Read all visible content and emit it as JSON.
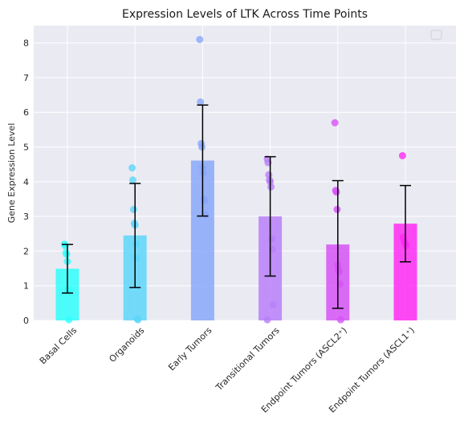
{
  "chart_data": {
    "type": "bar",
    "title": "Expression Levels of LTK Across Time Points",
    "xlabel": "",
    "ylabel": "Gene Expression Level",
    "ylim": [
      0,
      8.5
    ],
    "yticks": [
      0,
      1,
      2,
      3,
      4,
      5,
      6,
      7,
      8
    ],
    "grid": true,
    "legend": "top-right (empty)",
    "background": "#eaeaf2",
    "categories": [
      "Basal Cells",
      "Organoids",
      "Early Tumors",
      "Transitional Tumors",
      "Endpoint Tumors (ASCL2⁺)",
      "Endpoint Tumors (ASCL1⁺)"
    ],
    "values": [
      1.49,
      2.45,
      4.61,
      3.0,
      2.19,
      2.79
    ],
    "errors": [
      0.7,
      1.5,
      1.6,
      1.72,
      1.84,
      1.1
    ],
    "colors": [
      "#2ffffc",
      "#5ed6fa",
      "#8aa8fa",
      "#b87ff8",
      "#d653f6",
      "#ff2bf5"
    ],
    "points": [
      [
        2.2,
        2.15,
        1.95,
        1.9,
        1.7,
        0.9,
        0.02
      ],
      [
        4.4,
        4.05,
        3.2,
        2.8,
        2.75,
        2.2,
        1.8,
        0.05,
        0.02
      ],
      [
        8.1,
        6.3,
        5.1,
        5.0,
        4.4,
        4.25,
        3.5,
        3.45,
        3.05
      ],
      [
        4.65,
        4.55,
        4.2,
        4.05,
        4.0,
        3.85,
        2.35,
        2.05,
        0.45,
        0.02
      ],
      [
        5.7,
        3.75,
        3.7,
        3.2,
        1.6,
        1.45,
        1.4,
        1.05,
        0.02
      ],
      [
        4.75,
        2.4,
        2.3,
        2.25,
        2.2,
        2.15
      ]
    ]
  }
}
